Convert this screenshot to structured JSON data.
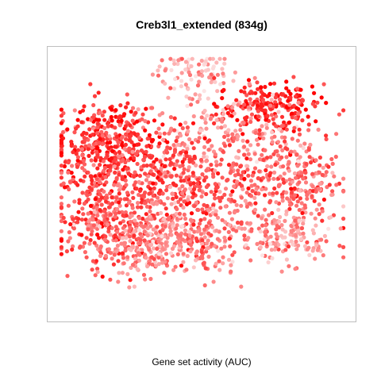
{
  "chart_data": {
    "type": "scatter",
    "title": "Creb3l1_extended (834g)",
    "xlabel": "Gene set activity (AUC)",
    "ylabel": "",
    "axes_visible": false,
    "grid": false,
    "legend": "none",
    "color_scale": {
      "low": "#fce4e4",
      "high": "#ff0000"
    },
    "clusters": [
      {
        "name": "top-center",
        "x": 0.47,
        "y": 0.92,
        "sx": 0.07,
        "sy": 0.05,
        "n": 90,
        "level": 0.25
      },
      {
        "name": "top-right",
        "x": 0.73,
        "y": 0.79,
        "sx": 0.09,
        "sy": 0.05,
        "n": 200,
        "level": 0.85
      },
      {
        "name": "upper-mid",
        "x": 0.55,
        "y": 0.7,
        "sx": 0.17,
        "sy": 0.07,
        "n": 150,
        "level": 0.35
      },
      {
        "name": "left-upper",
        "x": 0.17,
        "y": 0.63,
        "sx": 0.09,
        "sy": 0.09,
        "n": 380,
        "level": 0.78
      },
      {
        "name": "left-lower",
        "x": 0.17,
        "y": 0.34,
        "sx": 0.08,
        "sy": 0.1,
        "n": 300,
        "level": 0.62
      },
      {
        "name": "center-mid",
        "x": 0.43,
        "y": 0.49,
        "sx": 0.13,
        "sy": 0.09,
        "n": 380,
        "level": 0.62
      },
      {
        "name": "right-mid",
        "x": 0.79,
        "y": 0.5,
        "sx": 0.09,
        "sy": 0.1,
        "n": 300,
        "level": 0.55
      },
      {
        "name": "bottom-center",
        "x": 0.47,
        "y": 0.25,
        "sx": 0.11,
        "sy": 0.07,
        "n": 280,
        "level": 0.45
      },
      {
        "name": "bottom-right",
        "x": 0.79,
        "y": 0.26,
        "sx": 0.08,
        "sy": 0.06,
        "n": 150,
        "level": 0.35
      },
      {
        "name": "bottom-left",
        "x": 0.28,
        "y": 0.22,
        "sx": 0.07,
        "sy": 0.06,
        "n": 170,
        "level": 0.4
      }
    ]
  }
}
